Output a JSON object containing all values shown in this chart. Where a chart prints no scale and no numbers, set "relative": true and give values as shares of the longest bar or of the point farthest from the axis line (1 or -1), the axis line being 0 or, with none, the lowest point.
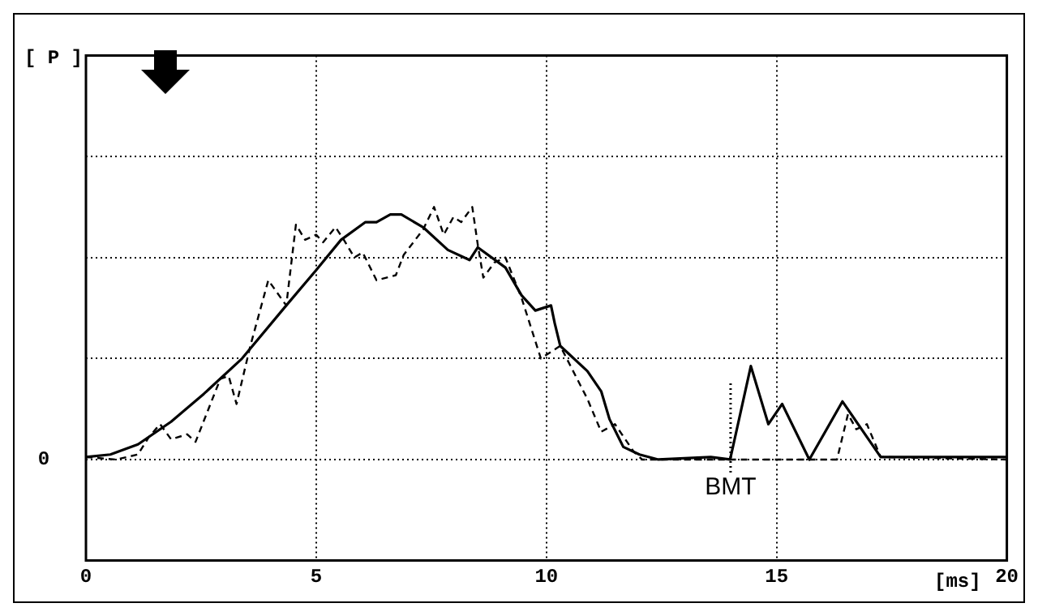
{
  "chart_data": {
    "type": "line",
    "relative": true,
    "xlabel": "[ms]",
    "xlim": [
      0,
      20
    ],
    "xticks": [
      0,
      5,
      10,
      15,
      20
    ],
    "annotations": [
      "0",
      "[ P ]"
    ],
    "grid": true,
    "legend": false,
    "marker": "none",
    "series": [
      {
        "color": "#000000",
        "line_style": "solid",
        "x": [
          0,
          0.53,
          1.13,
          1.85,
          2.56,
          3.39,
          4.35,
          5.0,
          5.54,
          6.07,
          6.31,
          6.61,
          6.85,
          7.32,
          7.86,
          8.33,
          8.51,
          9.11,
          9.46,
          9.76,
          10.1,
          10.18,
          10.3,
          10.89,
          11.19,
          11.37,
          11.67,
          12.02,
          12.43,
          13.57,
          13.99,
          14.44,
          14.82,
          15.12,
          15.71,
          16.43,
          17.26,
          20
        ],
        "values": [
          0.01,
          0.02,
          0.06,
          0.15,
          0.26,
          0.4,
          0.61,
          0.75,
          0.87,
          0.94,
          0.94,
          0.97,
          0.97,
          0.92,
          0.83,
          0.79,
          0.84,
          0.76,
          0.65,
          0.59,
          0.61,
          0.54,
          0.45,
          0.35,
          0.27,
          0.16,
          0.05,
          0.02,
          0,
          0.01,
          0,
          0.37,
          0.14,
          0.22,
          0,
          0.23,
          0.01,
          0.01
        ]
      },
      {
        "color": "#000000",
        "line_style": "dashed",
        "x": [
          0,
          0.65,
          1.13,
          1.37,
          1.61,
          1.85,
          2.2,
          2.38,
          2.92,
          3.1,
          3.27,
          3.57,
          3.96,
          4.35,
          4.56,
          4.76,
          5.0,
          5.15,
          5.42,
          5.6,
          5.83,
          6.01,
          6.31,
          6.73,
          6.9,
          7.32,
          7.56,
          7.77,
          7.98,
          8.15,
          8.39,
          8.51,
          8.63,
          8.87,
          9.11,
          9.46,
          9.88,
          10.3,
          10.89,
          11.19,
          11.49,
          11.9,
          12.08,
          16.31,
          16.55,
          16.73,
          16.96,
          17.26,
          20
        ],
        "values": [
          0.01,
          0,
          0.02,
          0.09,
          0.14,
          0.08,
          0.1,
          0.07,
          0.32,
          0.33,
          0.22,
          0.45,
          0.71,
          0.61,
          0.93,
          0.87,
          0.89,
          0.86,
          0.92,
          0.87,
          0.8,
          0.82,
          0.71,
          0.73,
          0.81,
          0.91,
          1.0,
          0.89,
          0.96,
          0.94,
          1.0,
          0.85,
          0.72,
          0.78,
          0.8,
          0.64,
          0.4,
          0.45,
          0.24,
          0.11,
          0.14,
          0.03,
          0,
          0,
          0.18,
          0.12,
          0.14,
          0.01,
          0
        ]
      }
    ],
    "ref_lines": [
      {
        "axis": "x",
        "value": 14,
        "label": "BMT",
        "line_style": "dotted"
      }
    ]
  }
}
